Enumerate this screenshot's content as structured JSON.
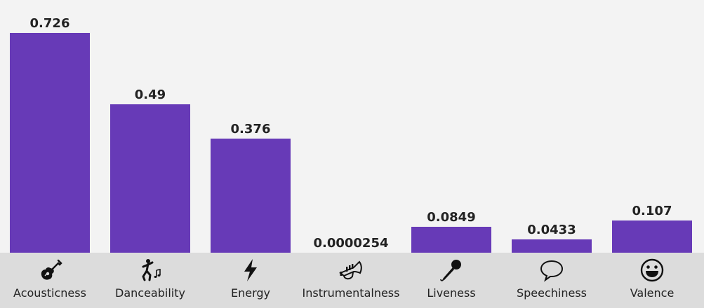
{
  "chart_data": {
    "type": "bar",
    "categories": [
      "Acousticness",
      "Danceability",
      "Energy",
      "Instrumentalness",
      "Liveness",
      "Speechiness",
      "Valence"
    ],
    "values": [
      0.726,
      0.49,
      0.376,
      2.54e-05,
      0.0849,
      0.0433,
      0.107
    ],
    "value_labels": [
      "0.726",
      "0.49",
      "0.376",
      "0.0000254",
      "0.0849",
      "0.0433",
      "0.107"
    ],
    "icons": [
      "guitar-icon",
      "dancer-icon",
      "lightning-icon",
      "trumpet-icon",
      "microphone-icon",
      "speech-bubble-icon",
      "smiley-icon"
    ],
    "bar_color": "#673ab7",
    "ylim": [
      0,
      0.726
    ],
    "grid": false,
    "legend": "none"
  }
}
